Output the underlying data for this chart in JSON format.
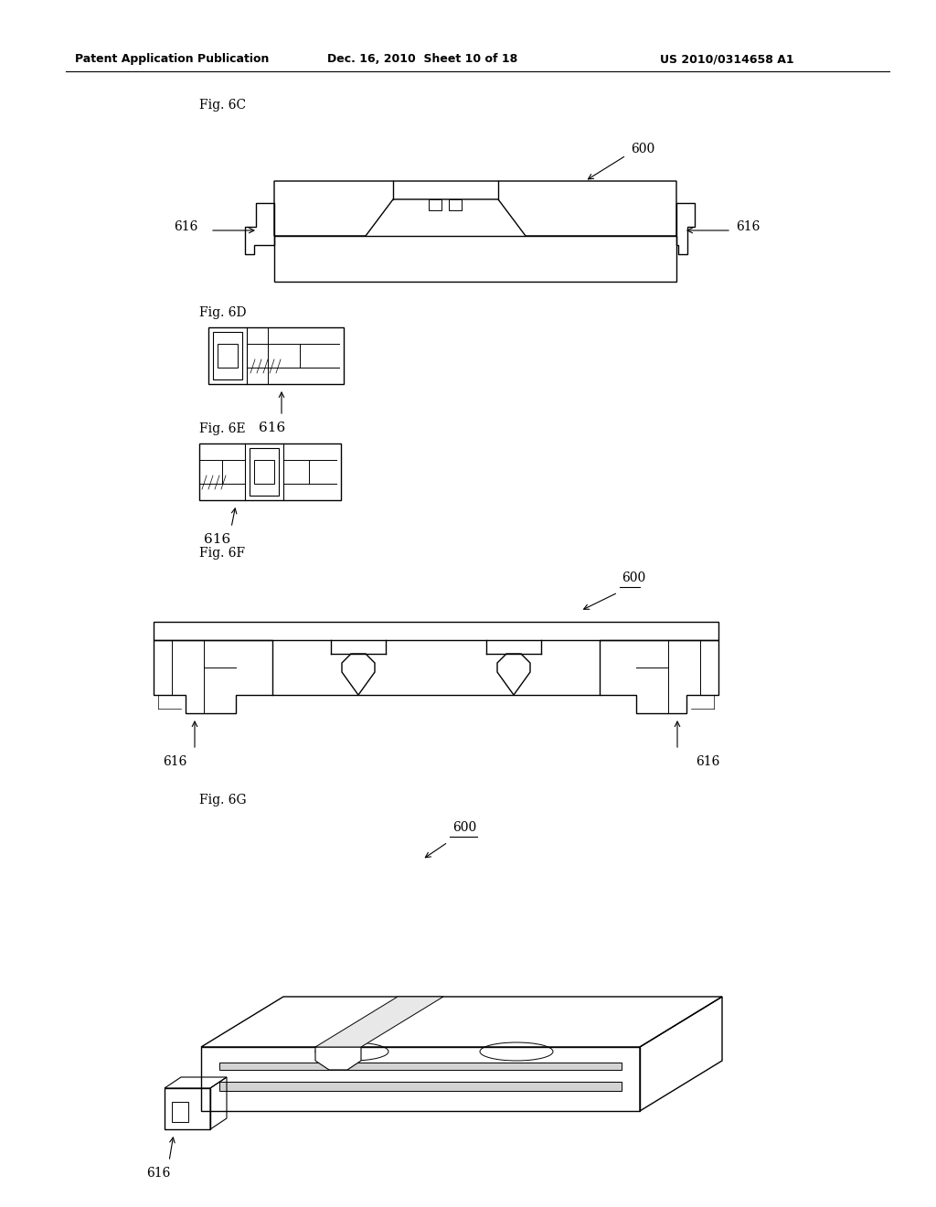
{
  "bg_color": "#ffffff",
  "header_line1": "Patent Application Publication",
  "header_line2": "Dec. 16, 2010  Sheet 10 of 18",
  "header_line3": "US 2010/0314658 A1"
}
